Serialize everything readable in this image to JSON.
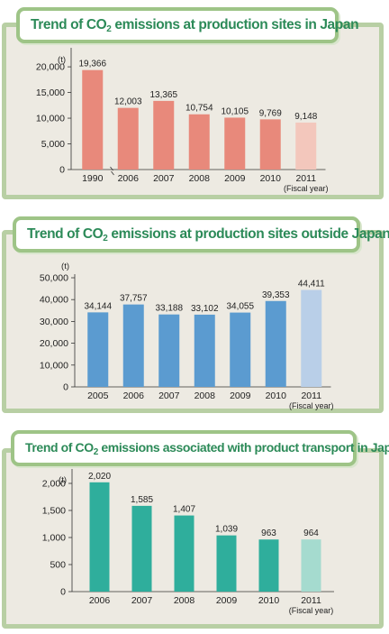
{
  "chart_data": [
    {
      "type": "bar",
      "title_parts": [
        "Trend of CO",
        "2",
        " emissions at production sites in Japan"
      ],
      "unit": "(t)",
      "xlabel": "(Fiscal year)",
      "categories": [
        "1990",
        "2006",
        "2007",
        "2008",
        "2009",
        "2010",
        "2011"
      ],
      "values": [
        19366,
        12003,
        13365,
        10754,
        10105,
        9769,
        9148
      ],
      "value_labels": [
        "19,366",
        "12,003",
        "13,365",
        "10,754",
        "10,105",
        "9,769",
        "9,148"
      ],
      "yticks": [
        "0",
        "5,000",
        "10,000",
        "15,000",
        "20,000"
      ],
      "ytick_values": [
        0,
        5000,
        10000,
        15000,
        20000
      ],
      "ylim": [
        0,
        23000
      ],
      "axis_break_after_first": true,
      "colors": {
        "bar": "#e8897b",
        "last_bar": "#f3c7bc",
        "title": "#2c8a58",
        "border": "#9ec487"
      }
    },
    {
      "type": "bar",
      "title_parts": [
        "Trend of CO",
        "2",
        " emissions at production sites outside Japan"
      ],
      "unit": "(t)",
      "xlabel": "(Fiscal year)",
      "categories": [
        "2005",
        "2006",
        "2007",
        "2008",
        "2009",
        "2010",
        "2011"
      ],
      "values": [
        34144,
        37757,
        33188,
        33102,
        34055,
        39353,
        44411
      ],
      "value_labels": [
        "34,144",
        "37,757",
        "33,188",
        "33,102",
        "34,055",
        "39,353",
        "44,411"
      ],
      "yticks": [
        "0",
        "10,000",
        "20,000",
        "30,000",
        "40,000",
        "50,000"
      ],
      "ytick_values": [
        0,
        10000,
        20000,
        30000,
        40000,
        50000
      ],
      "ylim": [
        0,
        50000
      ],
      "axis_break_after_first": false,
      "colors": {
        "bar": "#5b9bd0",
        "last_bar": "#b9cfe8",
        "title": "#2c8a58",
        "border": "#9ec487"
      }
    },
    {
      "type": "bar",
      "title_parts": [
        "Trend of CO",
        "2",
        " emissions associated with product transport in Japan"
      ],
      "unit": "(t)",
      "xlabel": "(Fiscal year)",
      "categories": [
        "2006",
        "2007",
        "2008",
        "2009",
        "2010",
        "2011"
      ],
      "values": [
        2020,
        1585,
        1407,
        1039,
        963,
        964
      ],
      "value_labels": [
        "2,020",
        "1,585",
        "1,407",
        "1,039",
        "963",
        "964"
      ],
      "yticks": [
        "0",
        "500",
        "1,000",
        "1,500",
        "2,000"
      ],
      "ytick_values": [
        0,
        500,
        1000,
        1500,
        2000
      ],
      "ylim": [
        0,
        2200
      ],
      "axis_break_after_first": false,
      "colors": {
        "bar": "#2fae9c",
        "last_bar": "#a5dbcf",
        "title": "#2c8a58",
        "border": "#9ec487"
      }
    }
  ]
}
